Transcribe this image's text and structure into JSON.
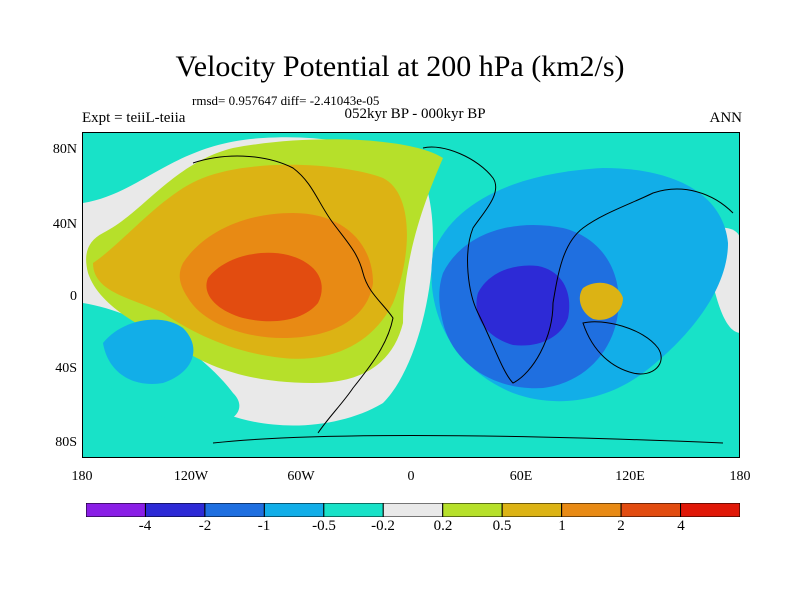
{
  "title": "Velocity Potential at 200 hPa (km2/s)",
  "stats": "rmsd= 0.957647 diff= -2.41043e-05",
  "left_label": "Expt = teiiL-teiia",
  "center_label": "052kyr BP - 000kyr BP",
  "right_label": "ANN",
  "lat_labels": [
    "80N",
    "40N",
    "0",
    "40S",
    "80S"
  ],
  "lon_labels": [
    "180",
    "120W",
    "60W",
    "0",
    "60E",
    "120E",
    "180"
  ],
  "colorbar": {
    "colors": [
      "#8a1ee6",
      "#2d2ad6",
      "#1f6fe0",
      "#12aee8",
      "#18e2c8",
      "#e9e9e9",
      "#b6e02a",
      "#dcb314",
      "#e88a14",
      "#e24c10",
      "#e01808"
    ],
    "labels": [
      "-4",
      "-2",
      "-1",
      "-0.5",
      "-0.2",
      "0.2",
      "0.5",
      "1",
      "2",
      "4"
    ]
  },
  "map": {
    "type": "filled-contour",
    "projection": "cylindrical equidistant",
    "lon_range": [
      -180,
      180
    ],
    "lat_range": [
      -90,
      90
    ],
    "positive_center": "Caribbean / northern South America (~70W, 10N)",
    "negative_center": "Western Indian Ocean / Madagascar (~45E, 5S)"
  }
}
